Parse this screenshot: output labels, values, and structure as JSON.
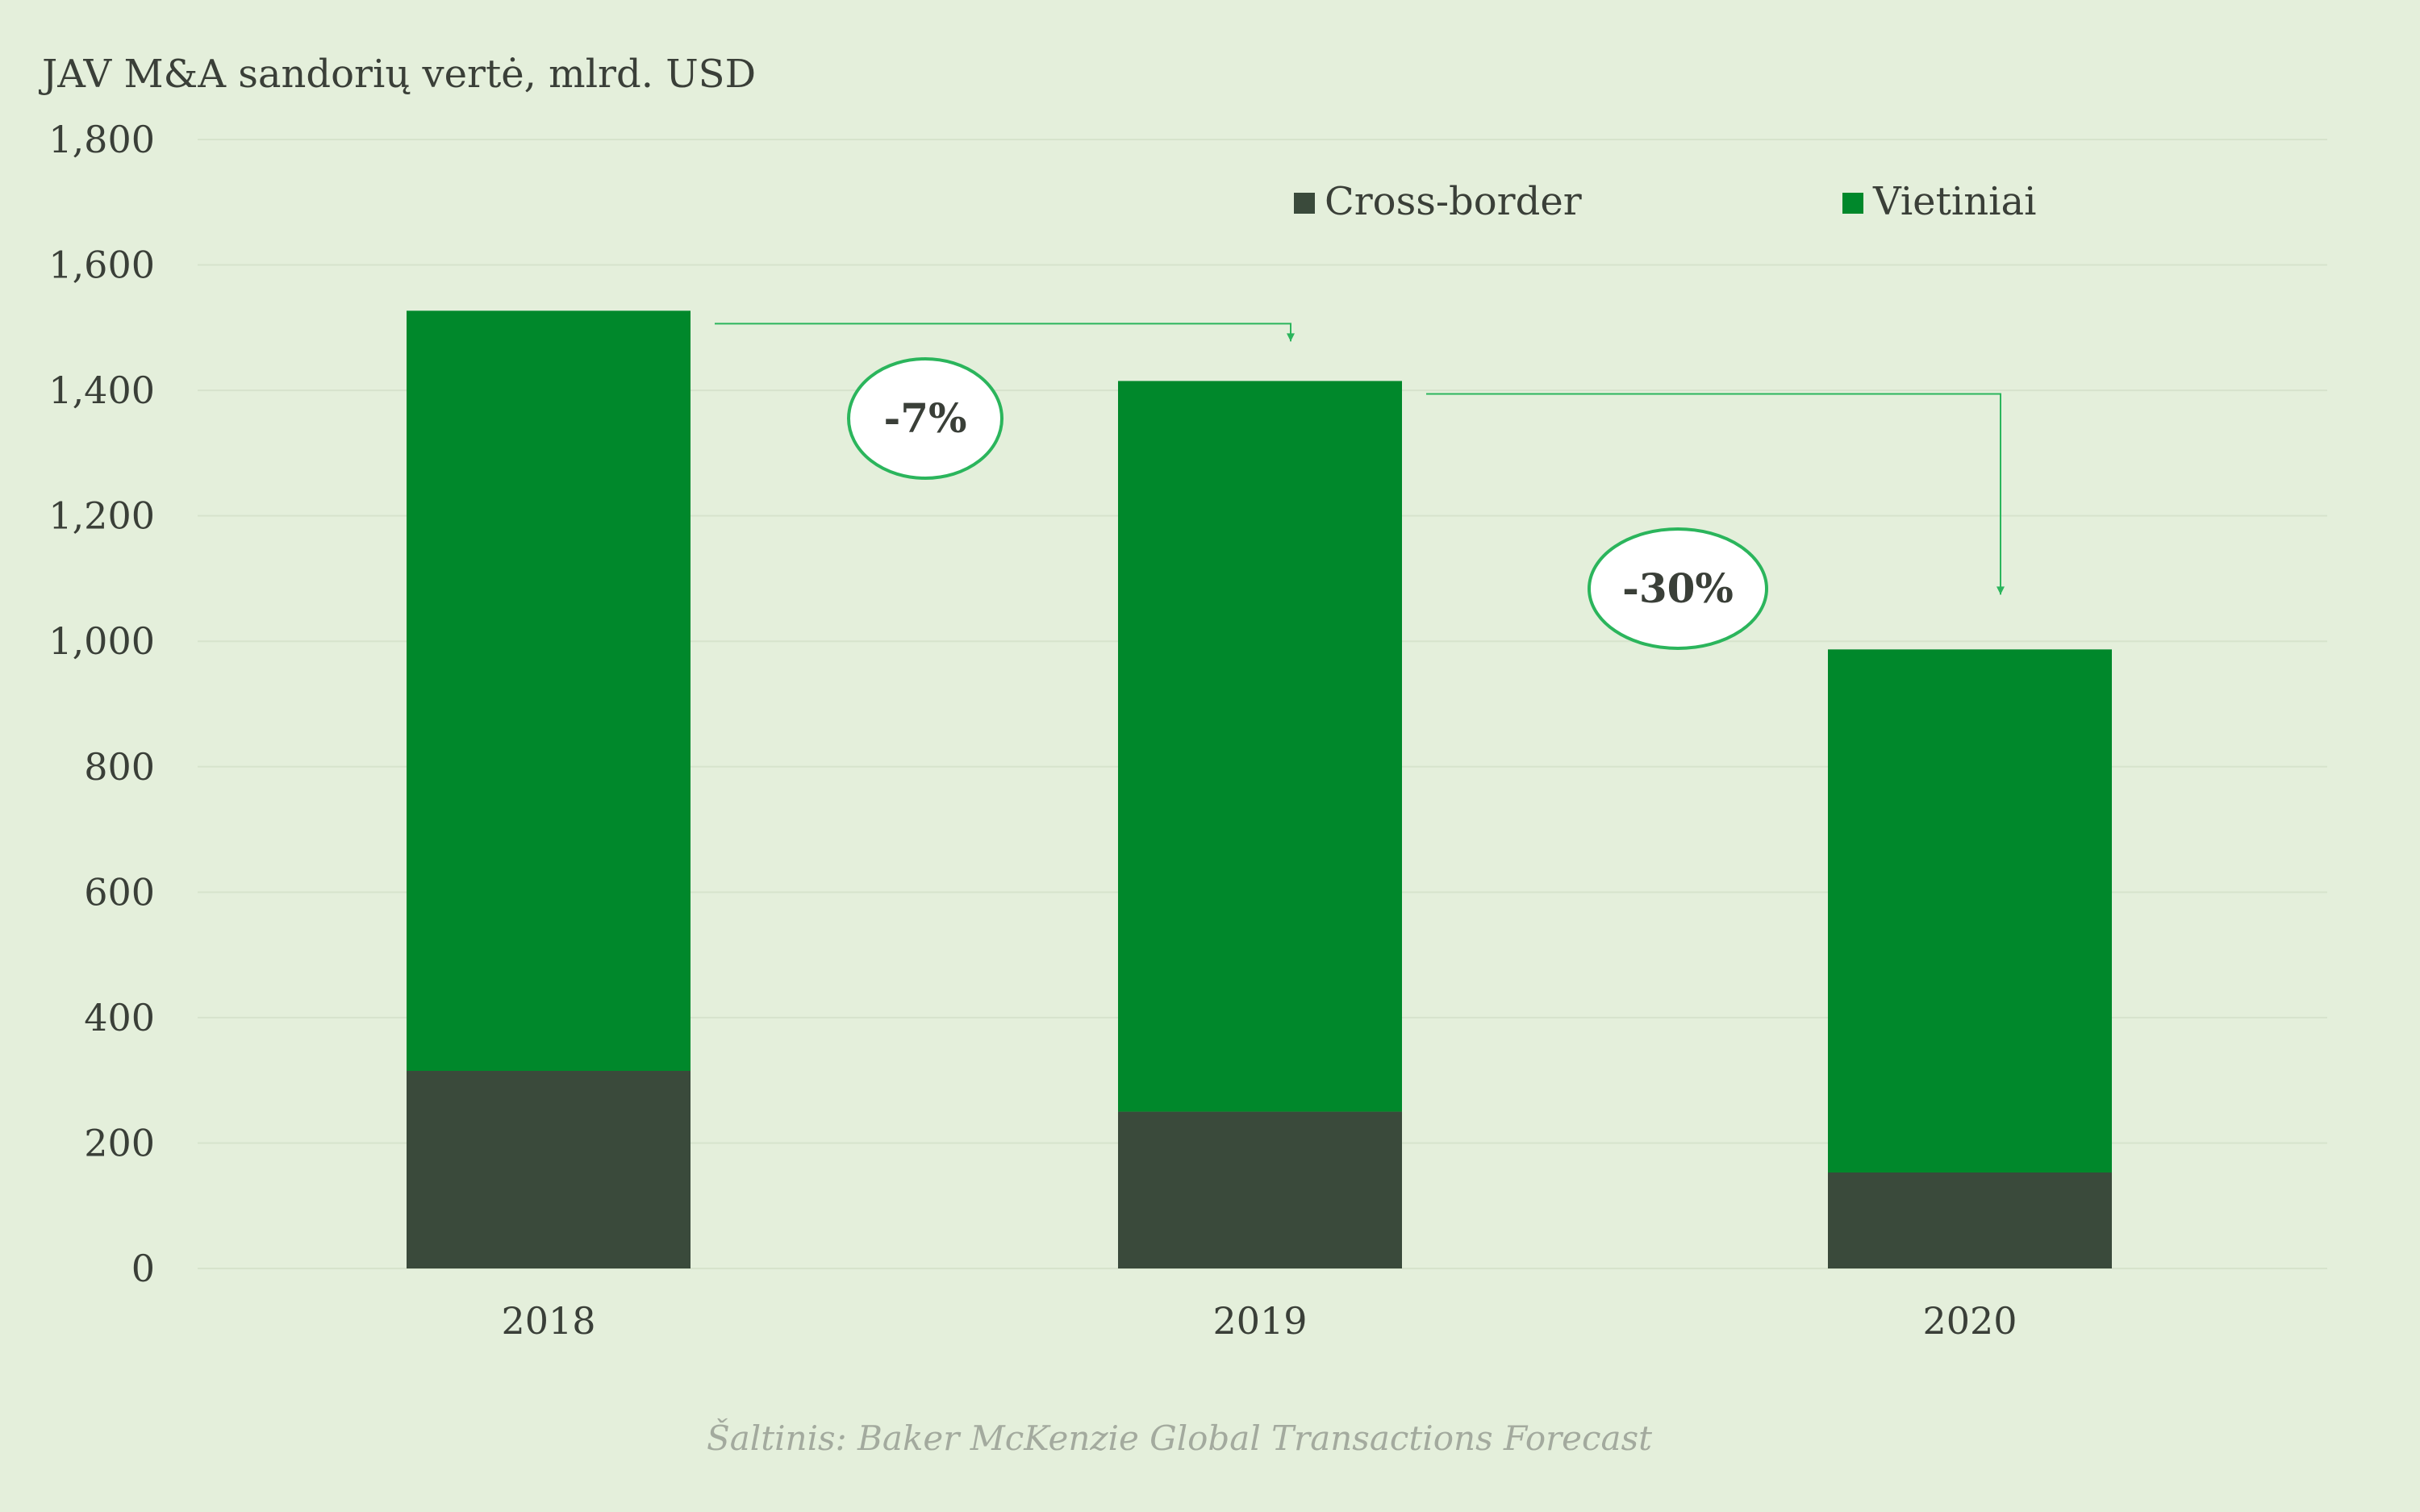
{
  "chart_data": {
    "type": "bar",
    "stacked": true,
    "title": "JAV M&A sandorių vertė, mlrd. USD",
    "categories": [
      "2018",
      "2019",
      "2020"
    ],
    "series": [
      {
        "name": "Cross-border",
        "values": [
          315,
          250,
          153
        ],
        "color": "#3a4a3b"
      },
      {
        "name": "Vietiniai",
        "values": [
          1212,
          1165,
          834
        ],
        "color": "#00882b"
      }
    ],
    "ylim": [
      0,
      1800
    ],
    "yticks": [
      "0",
      "200",
      "400",
      "600",
      "800",
      "1,000",
      "1,200",
      "1,400",
      "1,600",
      "1,800"
    ],
    "ytick_values": [
      0,
      200,
      400,
      600,
      800,
      1000,
      1200,
      1400,
      1600,
      1800
    ],
    "grid": true,
    "legend_position": "top-right",
    "annotations": [
      {
        "from": "2018",
        "to": "2019",
        "label": "-7%"
      },
      {
        "from": "2019",
        "to": "2020",
        "label": "-30%"
      }
    ],
    "source": "Šaltinis: Baker McKenzie Global Transactions Forecast"
  },
  "colors": {
    "background": "#e4efdb",
    "grid": "#d6e3cc",
    "text": "#3a3f38",
    "arrow": "#2bb55c",
    "source": "#a3aa9e"
  }
}
